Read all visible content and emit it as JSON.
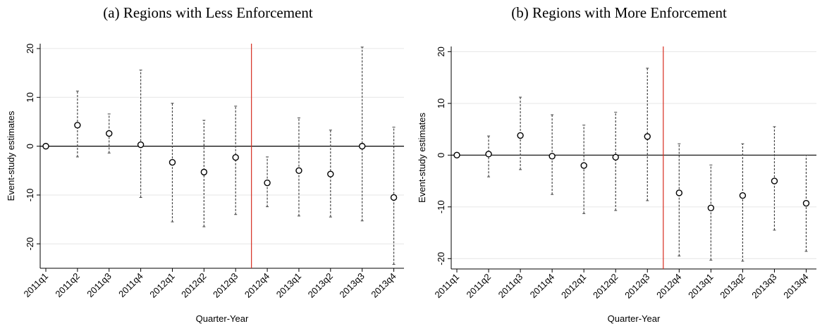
{
  "chart_data": [
    {
      "type": "scatter",
      "title": "(a) Regions with Less Enforcement",
      "xlabel": "Quarter-Year",
      "ylabel": "Event-study estimates",
      "categories": [
        "2011q1",
        "2011q2",
        "2011q3",
        "2011q4",
        "2012q1",
        "2012q2",
        "2012q3",
        "2012q4",
        "2013q1",
        "2013q2",
        "2013q3",
        "2013q4"
      ],
      "ylim": [
        -25,
        21
      ],
      "yticks": [
        -20,
        -10,
        0,
        10,
        20
      ],
      "ytick_labels": [
        "-20",
        "-10",
        "0",
        "10",
        "20"
      ],
      "reference_line_after": "2012q3",
      "grid": true,
      "series": [
        {
          "estimates": [
            0,
            4.3,
            2.6,
            0.3,
            -3.3,
            -5.3,
            -2.3,
            -7.5,
            -5.0,
            -5.7,
            0,
            -10.5
          ],
          "ci_lower": [
            0,
            -2.2,
            -1.4,
            -10.5,
            -15.5,
            -16.5,
            -14.0,
            -12.4,
            -14.3,
            -14.5,
            -15.3,
            -24.2
          ],
          "ci_upper": [
            0,
            11.3,
            6.6,
            15.6,
            8.8,
            5.3,
            8.2,
            -2.2,
            5.8,
            3.3,
            20.3,
            3.9
          ]
        }
      ]
    },
    {
      "type": "scatter",
      "title": "(b) Regions with More Enforcement",
      "xlabel": "Quarter-Year",
      "ylabel": "Event-study estimates",
      "categories": [
        "2011q1",
        "2011q2",
        "2011q3",
        "2011q4",
        "2012q1",
        "2012q2",
        "2012q3",
        "2012q4",
        "2013q1",
        "2013q2",
        "2013q3",
        "2013q4"
      ],
      "ylim": [
        -22,
        21
      ],
      "yticks": [
        -20,
        -10,
        0,
        10,
        20
      ],
      "ytick_labels": [
        "-20",
        "-10",
        "0",
        "10",
        "20"
      ],
      "reference_line_after": "2012q3",
      "grid": true,
      "series": [
        {
          "estimates": [
            0,
            0.2,
            3.8,
            -0.2,
            -2.0,
            -0.4,
            3.6,
            -7.3,
            -10.2,
            -7.8,
            -5.0,
            -9.3
          ],
          "ci_lower": [
            0,
            -4.2,
            -2.8,
            -7.6,
            -11.3,
            -10.7,
            -8.8,
            -19.5,
            -20.3,
            -20.5,
            -14.5,
            -18.6
          ],
          "ci_upper": [
            0,
            3.7,
            11.2,
            7.8,
            5.8,
            8.3,
            16.8,
            2.2,
            -1.9,
            2.2,
            5.5,
            0
          ]
        }
      ]
    }
  ]
}
